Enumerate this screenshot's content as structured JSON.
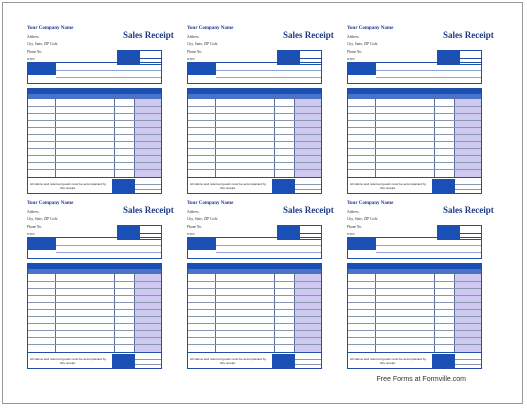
{
  "receipt": {
    "company_name": "Your Company Name",
    "address": "Address",
    "city_state_zip": "City, State, ZIP Code",
    "phone": "Phone No.",
    "www": "www",
    "title": "Sales Receipt",
    "footer_note": "All claims and returned goods must be accompanied by this receipt."
  },
  "credit": "Free Forms at Formville.com",
  "colors": {
    "header_blue": "#1a4fb5",
    "title_navy": "#1e3a8a",
    "amount_column": "#cfc8f0"
  }
}
